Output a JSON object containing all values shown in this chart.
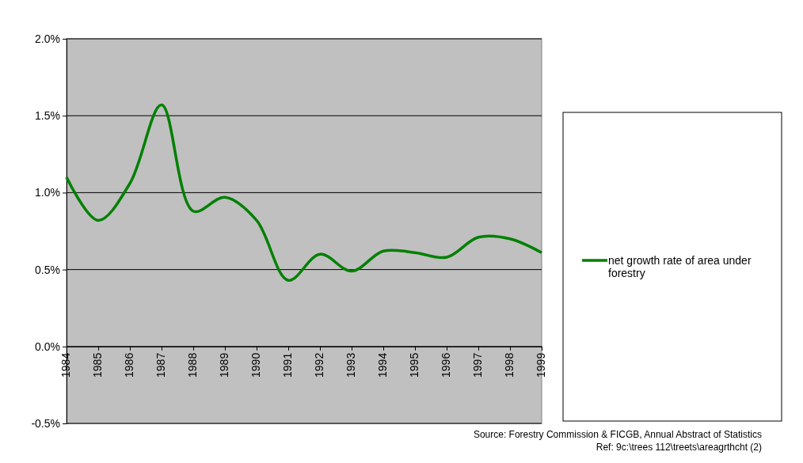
{
  "chart_data": {
    "type": "line",
    "x": [
      1984,
      1985,
      1986,
      1987,
      1988,
      1989,
      1990,
      1991,
      1992,
      1993,
      1994,
      1995,
      1996,
      1997,
      1998,
      1999
    ],
    "series": [
      {
        "name": "net growth rate of area under forestry",
        "color": "#008000",
        "values": [
          1.1,
          0.82,
          1.06,
          1.57,
          0.88,
          0.97,
          0.82,
          0.43,
          0.6,
          0.49,
          0.62,
          0.61,
          0.58,
          0.71,
          0.7,
          0.61
        ]
      }
    ],
    "xlim": [
      1984,
      1999
    ],
    "xticks": [
      1984,
      1985,
      1986,
      1987,
      1988,
      1989,
      1990,
      1991,
      1992,
      1993,
      1994,
      1995,
      1996,
      1997,
      1998,
      1999
    ],
    "ylim": [
      -0.5,
      2
    ],
    "yticks": [
      {
        "value": -0.5,
        "label": "-0.5%"
      },
      {
        "value": 0,
        "label": "0.0%"
      },
      {
        "value": 0.5,
        "label": "0.5%"
      },
      {
        "value": 1,
        "label": "1.0%"
      },
      {
        "value": 1.5,
        "label": "1.5%"
      },
      {
        "value": 2,
        "label": "2.0%"
      }
    ],
    "grid": "y",
    "legend": "right",
    "line_style": "solid",
    "annotations": [
      "Source: Forestry Commission & FICGB, Annual Abstract of Statistics",
      "Ref: 9c:\\trees 112\\treets\\areagrthcht (2)"
    ]
  }
}
